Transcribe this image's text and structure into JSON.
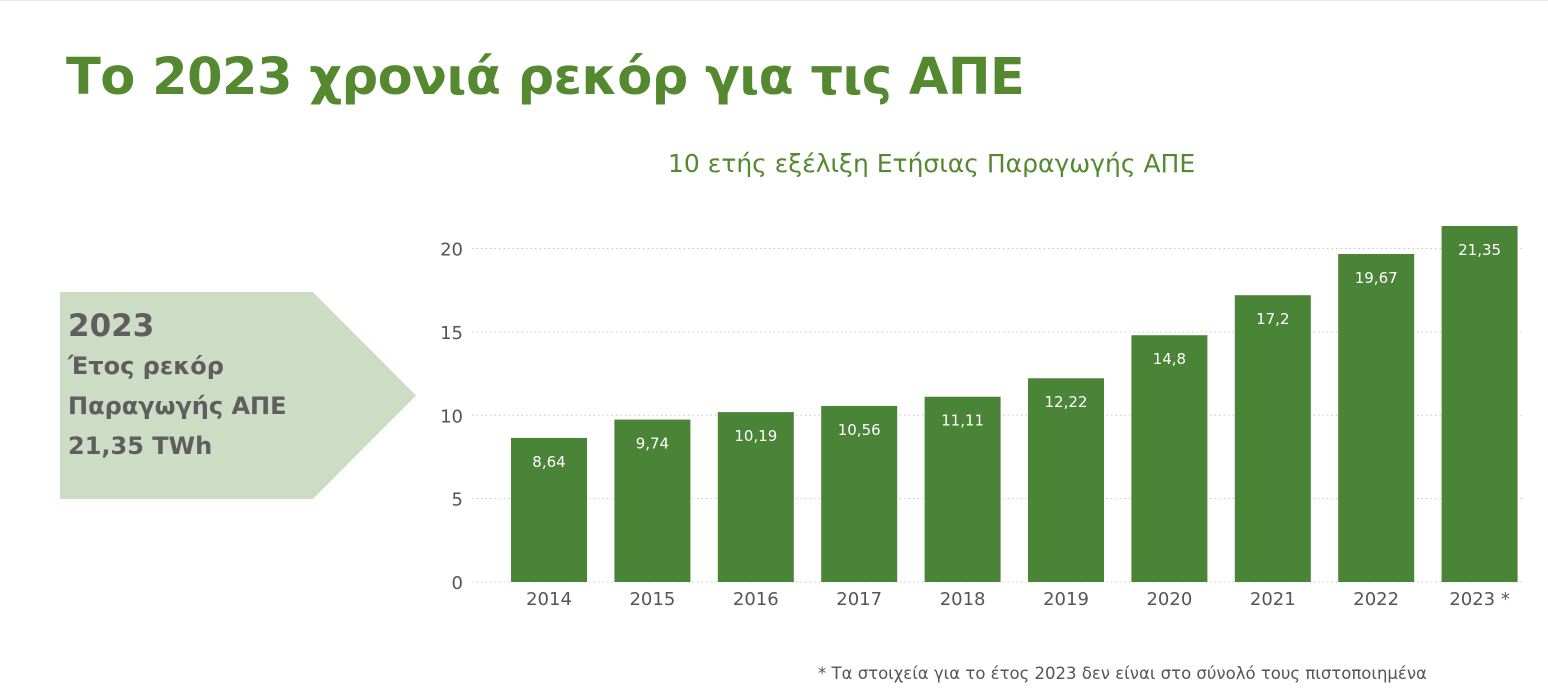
{
  "page": {
    "title": "Το 2023 χρονιά ρεκόρ για τις ΑΠΕ"
  },
  "callout": {
    "year": "2023",
    "line1": "Έτος ρεκόρ",
    "line2": "Παραγωγής ΑΠΕ",
    "line3": "21,35 TWh"
  },
  "chart_data": {
    "type": "bar",
    "title": "10 ετής εξέλιξη Ετήσιας Παραγωγής ΑΠΕ",
    "xlabel": "",
    "ylabel": "",
    "categories": [
      "2014",
      "2015",
      "2016",
      "2017",
      "2018",
      "2019",
      "2020",
      "2021",
      "2022",
      "2023 *"
    ],
    "values": [
      8.64,
      9.74,
      10.19,
      10.56,
      11.11,
      12.22,
      14.8,
      17.2,
      19.67,
      21.35
    ],
    "value_labels": [
      "8,64",
      "9,74",
      "10,19",
      "10,56",
      "11,11",
      "12,22",
      "14,8",
      "17,2",
      "19,67",
      "21,35"
    ],
    "ylim": [
      0,
      21.35
    ],
    "yticks": [
      0,
      5,
      10,
      15,
      20
    ],
    "grid": "horizontal dotted",
    "legend": "none"
  },
  "footnote": "*  Τα στοιχεία για το έτος 2023 δεν είναι στο σύνολό τους πιστοποιημένα",
  "colors": {
    "title": "#54892f",
    "bar": "#4a8436",
    "callout_bg": "#cddcc4",
    "callout_text": "#5e5e5e",
    "axis_text": "#555555",
    "grid": "#c8c8c8"
  }
}
